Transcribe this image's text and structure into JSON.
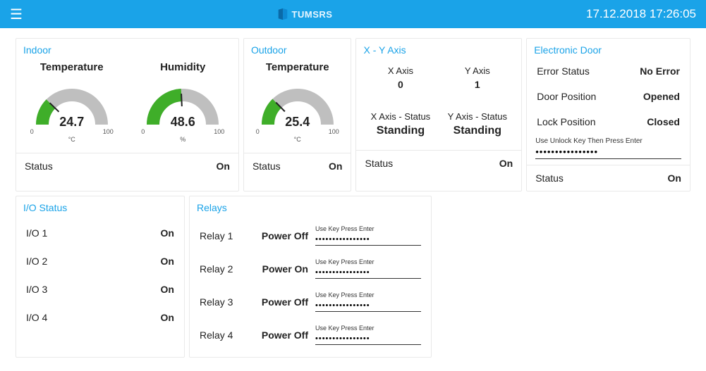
{
  "header": {
    "brand": "TUMSRS",
    "timestamp": "17.12.2018 17:26:05"
  },
  "indoor": {
    "title": "Indoor",
    "temperature": {
      "label": "Temperature",
      "value": "24.7",
      "unit": "°C",
      "min": "0",
      "max": "100",
      "fraction": 0.247
    },
    "humidity": {
      "label": "Humidity",
      "value": "48.6",
      "unit": "%",
      "min": "0",
      "max": "100",
      "fraction": 0.486
    },
    "status_label": "Status",
    "status_value": "On"
  },
  "outdoor": {
    "title": "Outdoor",
    "temperature": {
      "label": "Temperature",
      "value": "25.4",
      "unit": "°C",
      "min": "0",
      "max": "100",
      "fraction": 0.254
    },
    "status_label": "Status",
    "status_value": "On"
  },
  "xy": {
    "title": "X - Y Axis",
    "x_label": "X Axis",
    "x_value": "0",
    "y_label": "Y Axis",
    "y_value": "1",
    "x_status_label": "X Axis - Status",
    "x_status_value": "Standing",
    "y_status_label": "Y Axis - Status",
    "y_status_value": "Standing",
    "status_label": "Status",
    "status_value": "On"
  },
  "door": {
    "title": "Electronic Door",
    "error_label": "Error Status",
    "error_value": "No Error",
    "pos_label": "Door Position",
    "pos_value": "Opened",
    "lock_label": "Lock Position",
    "lock_value": "Closed",
    "unlock_hint": "Use Unlock Key Then Press Enter",
    "unlock_mask": "••••••••••••••••",
    "status_label": "Status",
    "status_value": "On"
  },
  "io": {
    "title": "I/O Status",
    "items": [
      {
        "label": "I/O 1",
        "value": "On"
      },
      {
        "label": "I/O 2",
        "value": "On"
      },
      {
        "label": "I/O 3",
        "value": "On"
      },
      {
        "label": "I/O 4",
        "value": "On"
      }
    ]
  },
  "relays": {
    "title": "Relays",
    "hint": "Use Key Press Enter",
    "mask": "••••••••••••••••",
    "items": [
      {
        "label": "Relay 1",
        "state": "Power Off"
      },
      {
        "label": "Relay 2",
        "state": "Power On"
      },
      {
        "label": "Relay 3",
        "state": "Power Off"
      },
      {
        "label": "Relay 4",
        "state": "Power Off"
      }
    ]
  },
  "gauge_style": {
    "track_color": "#bfbfbf",
    "fill_color": "#3fae29",
    "needle_color": "#222"
  }
}
